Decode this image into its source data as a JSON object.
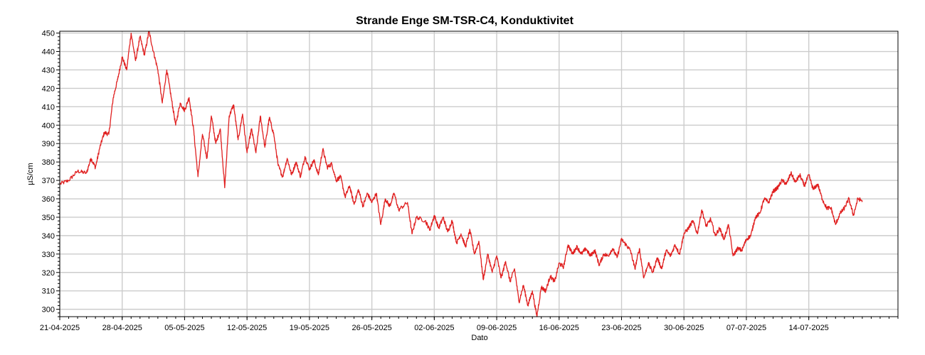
{
  "chart_data": {
    "type": "line",
    "title": "Strande Enge SM-TSR-C4, Konduktivitet",
    "xlabel": "Dato",
    "ylabel": "µS/cm",
    "ylim": [
      296,
      451
    ],
    "xlim": [
      "2025-04-21",
      "2025-07-24"
    ],
    "y_ticks": [
      300,
      310,
      320,
      330,
      340,
      350,
      360,
      370,
      380,
      390,
      400,
      410,
      420,
      430,
      440,
      450
    ],
    "x_ticks": [
      "21-04-2025",
      "28-04-2025",
      "05-05-2025",
      "12-05-2025",
      "19-05-2025",
      "26-05-2025",
      "02-06-2025",
      "09-06-2025",
      "16-06-2025",
      "23-06-2025",
      "30-06-2025",
      "07-07-2025",
      "14-07-2025"
    ],
    "grid": true,
    "legend": "none",
    "series": [
      {
        "color": "#e02020",
        "points": [
          [
            "2025-04-21",
            368
          ],
          [
            "2025-04-22",
            370
          ],
          [
            "2025-04-23",
            375
          ],
          [
            "2025-04-24",
            374
          ],
          [
            "2025-04-24T12",
            382
          ],
          [
            "2025-04-25",
            377
          ],
          [
            "2025-04-25T12",
            388
          ],
          [
            "2025-04-26",
            396
          ],
          [
            "2025-04-26T12",
            395
          ],
          [
            "2025-04-27",
            415
          ],
          [
            "2025-04-27T12",
            425
          ],
          [
            "2025-04-28",
            437
          ],
          [
            "2025-04-28T12",
            430
          ],
          [
            "2025-04-29",
            450
          ],
          [
            "2025-04-29T12",
            435
          ],
          [
            "2025-04-30",
            448
          ],
          [
            "2025-04-30T12",
            438
          ],
          [
            "2025-05-01",
            451
          ],
          [
            "2025-05-01T12",
            440
          ],
          [
            "2025-05-02",
            430
          ],
          [
            "2025-05-02T12",
            412
          ],
          [
            "2025-05-03",
            430
          ],
          [
            "2025-05-03T12",
            415
          ],
          [
            "2025-05-04",
            400
          ],
          [
            "2025-05-04T12",
            412
          ],
          [
            "2025-05-05",
            408
          ],
          [
            "2025-05-05T12",
            415
          ],
          [
            "2025-05-06",
            398
          ],
          [
            "2025-05-06T12",
            372
          ],
          [
            "2025-05-07",
            395
          ],
          [
            "2025-05-07T12",
            382
          ],
          [
            "2025-05-08",
            405
          ],
          [
            "2025-05-08T12",
            390
          ],
          [
            "2025-05-09",
            398
          ],
          [
            "2025-05-09T12",
            366
          ],
          [
            "2025-05-10",
            405
          ],
          [
            "2025-05-10T12",
            411
          ],
          [
            "2025-05-11",
            392
          ],
          [
            "2025-05-11T12",
            406
          ],
          [
            "2025-05-12",
            385
          ],
          [
            "2025-05-12T12",
            398
          ],
          [
            "2025-05-13",
            385
          ],
          [
            "2025-05-13T12",
            405
          ],
          [
            "2025-05-14",
            388
          ],
          [
            "2025-05-14T12",
            404
          ],
          [
            "2025-05-15",
            395
          ],
          [
            "2025-05-15T12",
            378
          ],
          [
            "2025-05-16",
            372
          ],
          [
            "2025-05-16T12",
            382
          ],
          [
            "2025-05-17",
            373
          ],
          [
            "2025-05-17T12",
            380
          ],
          [
            "2025-05-18",
            372
          ],
          [
            "2025-05-18T12",
            383
          ],
          [
            "2025-05-19",
            376
          ],
          [
            "2025-05-19T12",
            381
          ],
          [
            "2025-05-20",
            373
          ],
          [
            "2025-05-20T12",
            387
          ],
          [
            "2025-05-21",
            377
          ],
          [
            "2025-05-21T12",
            379
          ],
          [
            "2025-05-22",
            370
          ],
          [
            "2025-05-22T12",
            372
          ],
          [
            "2025-05-23",
            361
          ],
          [
            "2025-05-23T12",
            367
          ],
          [
            "2025-05-24",
            357
          ],
          [
            "2025-05-24T12",
            365
          ],
          [
            "2025-05-25",
            356
          ],
          [
            "2025-05-25T12",
            363
          ],
          [
            "2025-05-26",
            358
          ],
          [
            "2025-05-26T12",
            363
          ],
          [
            "2025-05-27",
            346
          ],
          [
            "2025-05-27T12",
            360
          ],
          [
            "2025-05-28",
            356
          ],
          [
            "2025-05-28T12",
            363
          ],
          [
            "2025-05-29",
            354
          ],
          [
            "2025-05-30",
            358
          ],
          [
            "2025-05-30T12",
            341
          ],
          [
            "2025-05-31",
            350
          ],
          [
            "2025-06-01",
            348
          ],
          [
            "2025-06-01T12",
            343
          ],
          [
            "2025-06-02",
            351
          ],
          [
            "2025-06-02T12",
            344
          ],
          [
            "2025-06-03",
            350
          ],
          [
            "2025-06-03T12",
            342
          ],
          [
            "2025-06-04",
            348
          ],
          [
            "2025-06-04T12",
            336
          ],
          [
            "2025-06-05",
            341
          ],
          [
            "2025-06-05T12",
            334
          ],
          [
            "2025-06-06",
            343
          ],
          [
            "2025-06-06T12",
            330
          ],
          [
            "2025-06-07",
            337
          ],
          [
            "2025-06-07T12",
            316
          ],
          [
            "2025-06-08",
            330
          ],
          [
            "2025-06-08T12",
            320
          ],
          [
            "2025-06-09",
            329
          ],
          [
            "2025-06-09T12",
            317
          ],
          [
            "2025-06-10",
            326
          ],
          [
            "2025-06-10T12",
            315
          ],
          [
            "2025-06-11",
            322
          ],
          [
            "2025-06-11T12",
            304
          ],
          [
            "2025-06-12",
            313
          ],
          [
            "2025-06-12T12",
            302
          ],
          [
            "2025-06-13",
            310
          ],
          [
            "2025-06-13T12",
            296
          ],
          [
            "2025-06-14",
            312
          ],
          [
            "2025-06-14T12",
            310
          ],
          [
            "2025-06-15",
            318
          ],
          [
            "2025-06-15T12",
            315
          ],
          [
            "2025-06-16",
            325
          ],
          [
            "2025-06-16T12",
            323
          ],
          [
            "2025-06-17",
            335
          ],
          [
            "2025-06-17T12",
            330
          ],
          [
            "2025-06-18",
            334
          ],
          [
            "2025-06-18T12",
            330
          ],
          [
            "2025-06-19",
            333
          ],
          [
            "2025-06-19T12",
            329
          ],
          [
            "2025-06-20",
            332
          ],
          [
            "2025-06-20T12",
            324
          ],
          [
            "2025-06-21",
            330
          ],
          [
            "2025-06-21T12",
            329
          ],
          [
            "2025-06-22",
            333
          ],
          [
            "2025-06-22T12",
            328
          ],
          [
            "2025-06-23",
            338
          ],
          [
            "2025-06-23T12",
            335
          ],
          [
            "2025-06-24",
            332
          ],
          [
            "2025-06-24T12",
            322
          ],
          [
            "2025-06-25",
            333
          ],
          [
            "2025-06-25T12",
            317
          ],
          [
            "2025-06-26",
            325
          ],
          [
            "2025-06-26T12",
            320
          ],
          [
            "2025-06-27",
            328
          ],
          [
            "2025-06-27T12",
            322
          ],
          [
            "2025-06-28",
            332
          ],
          [
            "2025-06-28T12",
            329
          ],
          [
            "2025-06-29",
            335
          ],
          [
            "2025-06-29T12",
            330
          ],
          [
            "2025-06-30",
            341
          ],
          [
            "2025-06-30T12",
            344
          ],
          [
            "2025-07-01",
            348
          ],
          [
            "2025-07-01T12",
            341
          ],
          [
            "2025-07-02",
            354
          ],
          [
            "2025-07-02T12",
            345
          ],
          [
            "2025-07-03",
            349
          ],
          [
            "2025-07-03T12",
            340
          ],
          [
            "2025-07-04",
            344
          ],
          [
            "2025-07-04T12",
            338
          ],
          [
            "2025-07-05",
            346
          ],
          [
            "2025-07-05T12",
            329
          ],
          [
            "2025-07-06",
            333
          ],
          [
            "2025-07-06T12",
            332
          ],
          [
            "2025-07-07",
            338
          ],
          [
            "2025-07-07T12",
            340
          ],
          [
            "2025-07-08",
            350
          ],
          [
            "2025-07-08T12",
            352
          ],
          [
            "2025-07-09",
            360
          ],
          [
            "2025-07-09T12",
            358
          ],
          [
            "2025-07-10",
            364
          ],
          [
            "2025-07-10T12",
            366
          ],
          [
            "2025-07-11",
            370
          ],
          [
            "2025-07-11T12",
            368
          ],
          [
            "2025-07-12",
            374
          ],
          [
            "2025-07-12T12",
            369
          ],
          [
            "2025-07-13",
            373
          ],
          [
            "2025-07-13T12",
            367
          ],
          [
            "2025-07-14",
            373
          ],
          [
            "2025-07-14T12",
            365
          ],
          [
            "2025-07-15",
            368
          ],
          [
            "2025-07-15T12",
            360
          ],
          [
            "2025-07-16",
            355
          ],
          [
            "2025-07-16T12",
            355
          ],
          [
            "2025-07-17",
            346
          ],
          [
            "2025-07-17T12",
            352
          ],
          [
            "2025-07-18",
            355
          ],
          [
            "2025-07-18T12",
            360
          ],
          [
            "2025-07-19",
            351
          ],
          [
            "2025-07-19T12",
            360
          ],
          [
            "2025-07-20",
            359
          ]
        ]
      }
    ]
  }
}
